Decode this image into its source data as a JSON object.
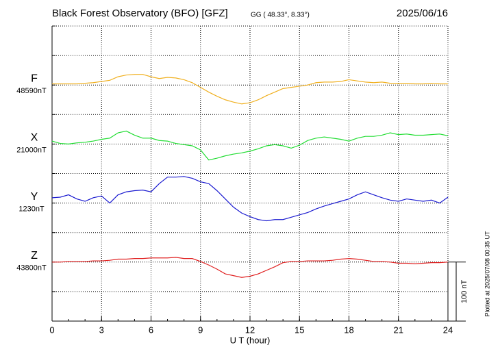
{
  "chart_data": {
    "type": "line",
    "title": "Black Forest Observatory (BFO)  [GFZ]",
    "subtitle": "GG ( 48.33°,  8.33°)",
    "date": "2025/06/16",
    "xlabel": "U T (hour)",
    "footnote": "Plotted at 2025/07/08 00:35 UT",
    "scale": {
      "value": 100,
      "label": "100 nT"
    },
    "xlim": [
      0,
      24
    ],
    "xticks": [
      0,
      3,
      6,
      9,
      12,
      15,
      18,
      21,
      24
    ],
    "grid": true,
    "x": [
      0,
      0.5,
      1,
      1.5,
      2,
      2.5,
      3,
      3.5,
      4,
      4.5,
      5,
      5.5,
      6,
      6.5,
      7,
      7.5,
      8,
      8.5,
      9,
      9.5,
      10,
      10.5,
      11,
      11.5,
      12,
      12.5,
      13,
      13.5,
      14,
      14.5,
      15,
      15.5,
      16,
      16.5,
      17,
      17.5,
      18,
      18.5,
      19,
      19.5,
      20,
      20.5,
      21,
      21.5,
      22,
      22.5,
      23,
      23.5,
      24
    ],
    "series": [
      {
        "name": "F",
        "color": "#f0b020",
        "baseline": 48590,
        "baseline_label": "48590nT",
        "values": [
          48592,
          48592,
          48592,
          48592,
          48593,
          48594,
          48596,
          48598,
          48604,
          48607,
          48608,
          48608,
          48604,
          48601,
          48603,
          48602,
          48599,
          48594,
          48586,
          48578,
          48571,
          48565,
          48561,
          48558,
          48560,
          48565,
          48572,
          48578,
          48584,
          48586,
          48588,
          48590,
          48594,
          48595,
          48595,
          48596,
          48599,
          48597,
          48595,
          48594,
          48595,
          48593,
          48593,
          48593,
          48592,
          48592,
          48593,
          48592,
          48592
        ]
      },
      {
        "name": "X",
        "color": "#22dd33",
        "baseline": 21000,
        "baseline_label": "21000nT",
        "values": [
          21005,
          21001,
          21000,
          21002,
          21003,
          21005,
          21008,
          21010,
          21019,
          21022,
          21015,
          21010,
          21010,
          21006,
          21005,
          21001,
          20999,
          20997,
          20990,
          20973,
          20976,
          20980,
          20983,
          20985,
          20988,
          20992,
          20997,
          20999,
          20997,
          20993,
          20998,
          21006,
          21010,
          21012,
          21010,
          21008,
          21005,
          21010,
          21013,
          21013,
          21015,
          21019,
          21016,
          21017,
          21015,
          21015,
          21016,
          21017,
          21014
        ]
      },
      {
        "name": "Y",
        "color": "#1a1ad0",
        "baseline": 1230,
        "baseline_label": "1230nT",
        "values": [
          1239,
          1240,
          1244,
          1237,
          1233,
          1239,
          1242,
          1230,
          1244,
          1249,
          1251,
          1252,
          1249,
          1263,
          1274,
          1274,
          1275,
          1272,
          1266,
          1263,
          1251,
          1237,
          1223,
          1213,
          1207,
          1202,
          1200,
          1202,
          1202,
          1206,
          1210,
          1214,
          1220,
          1225,
          1229,
          1233,
          1237,
          1244,
          1249,
          1244,
          1239,
          1235,
          1233,
          1237,
          1235,
          1233,
          1235,
          1230,
          1240
        ]
      },
      {
        "name": "Z",
        "color": "#e02020",
        "baseline": 43800,
        "baseline_label": "43800nT",
        "values": [
          43800,
          43800,
          43801,
          43801,
          43801,
          43802,
          43802,
          43803,
          43805,
          43805,
          43806,
          43806,
          43807,
          43807,
          43807,
          43808,
          43806,
          43806,
          43801,
          43795,
          43788,
          43780,
          43777,
          43774,
          43776,
          43780,
          43786,
          43792,
          43799,
          43801,
          43801,
          43802,
          43802,
          43802,
          43803,
          43805,
          43806,
          43805,
          43803,
          43801,
          43801,
          43800,
          43798,
          43798,
          43797,
          43798,
          43799,
          43799,
          43800
        ]
      }
    ]
  }
}
